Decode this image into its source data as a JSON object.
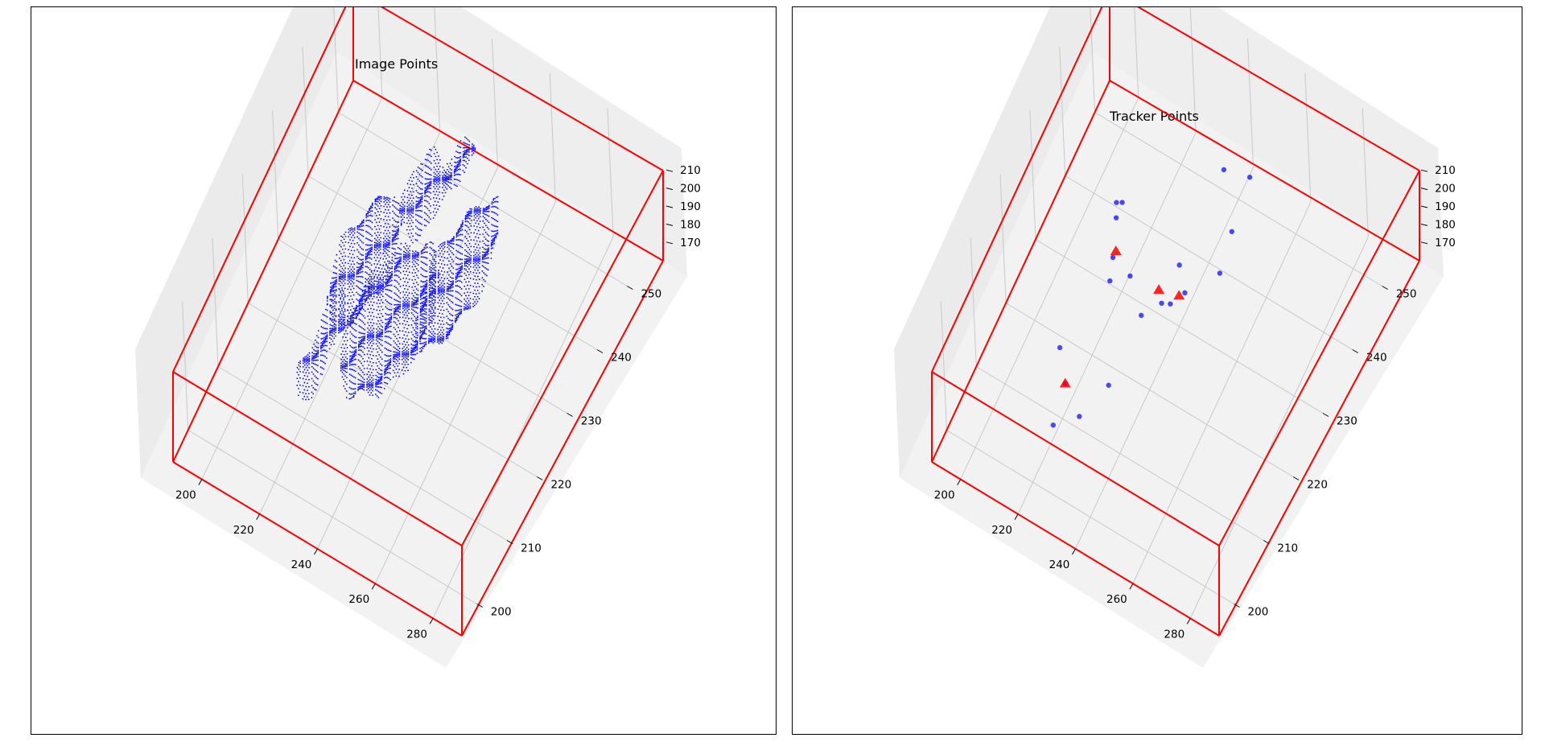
{
  "chart_data": [
    {
      "type": "scatter",
      "title": "Image Points",
      "projection": "3d",
      "marker": "dot",
      "colors": {
        "points": "#0000ff",
        "box": "#ff0000",
        "pane": "#f2f2f2",
        "grid": "#c8c8c8"
      },
      "xlim": [
        190,
        290
      ],
      "ylim": [
        195,
        255
      ],
      "zlim": [
        165,
        215
      ],
      "x_ticks": [
        "200",
        "220",
        "240",
        "260",
        "280"
      ],
      "y_ticks": [
        "200",
        "210",
        "220",
        "230",
        "240",
        "250"
      ],
      "z_ticks": [
        "170",
        "180",
        "190",
        "200",
        "210"
      ],
      "grid": true,
      "surface_blobs": [
        {
          "xy_center": [
            224,
            226
          ],
          "z": 200,
          "extent": [
            8,
            10
          ]
        },
        {
          "xy_center": [
            238,
            221
          ],
          "z": 198,
          "extent": [
            12,
            12
          ]
        },
        {
          "xy_center": [
            250,
            232
          ],
          "z": 196,
          "extent": [
            8,
            12
          ]
        },
        {
          "xy_center": [
            232,
            238
          ],
          "z": 202,
          "extent": [
            6,
            6
          ]
        },
        {
          "xy_center": [
            238,
            244
          ],
          "z": 204,
          "extent": [
            4,
            4
          ]
        },
        {
          "xy_center": [
            222,
            214
          ],
          "z": 194,
          "extent": [
            4,
            8
          ]
        }
      ]
    },
    {
      "type": "scatter",
      "title": "Tracker Points",
      "projection": "3d",
      "colors": {
        "points": "#0000ff",
        "markers": "#ff0000",
        "box": "#ff0000",
        "pane": "#f2f2f2",
        "grid": "#c8c8c8"
      },
      "xlim": [
        190,
        290
      ],
      "ylim": [
        195,
        255
      ],
      "zlim": [
        165,
        215
      ],
      "x_ticks": [
        "200",
        "220",
        "240",
        "260",
        "280"
      ],
      "y_ticks": [
        "200",
        "210",
        "220",
        "230",
        "240",
        "250"
      ],
      "z_ticks": [
        "170",
        "180",
        "190",
        "200",
        "210"
      ],
      "grid": true,
      "series": [
        {
          "marker": "circle",
          "points": [
            [
              213,
              235,
              190
            ],
            [
              215,
              235,
              192
            ],
            [
              216,
              232,
              195
            ],
            [
              219,
              228,
              190
            ],
            [
              220,
              226,
              185
            ],
            [
              226,
              227,
              190
            ],
            [
              234,
              223,
              190
            ],
            [
              238,
              226,
              190
            ],
            [
              243,
              229,
              190
            ],
            [
              240,
              227,
              188
            ],
            [
              250,
              234,
              190
            ],
            [
              238,
              232,
              190
            ],
            [
              248,
              240,
              190
            ],
            [
              234,
              212,
              190
            ],
            [
              230,
              206,
              190
            ],
            [
              222,
              209,
              190
            ],
            [
              216,
              213,
              190
            ],
            [
              224,
              203,
              190
            ],
            [
              238,
              247,
              190
            ],
            [
              246,
              248,
              190
            ]
          ]
        },
        {
          "marker": "triangle",
          "points": [
            [
              219,
              229,
              190
            ],
            [
              242,
              228,
              191
            ],
            [
              222,
              209,
              190
            ],
            [
              236,
              227,
              192
            ]
          ]
        }
      ]
    }
  ]
}
